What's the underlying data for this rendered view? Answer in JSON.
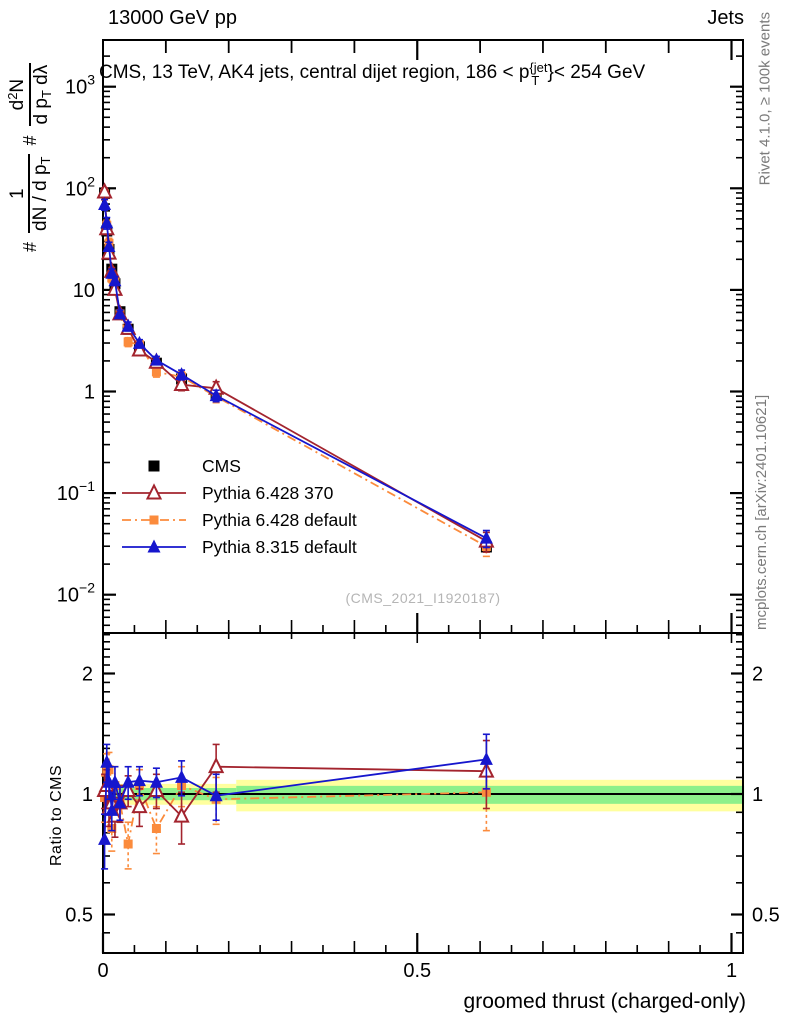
{
  "header": {
    "left": "13000 GeV pp",
    "right": "Jets"
  },
  "plot_title": {
    "pre": "CMS, 13 TeV, AK4 jets, central dijet region, 186 < p",
    "sup": "{jet",
    "sub": "T",
    "post": "}< 254 GeV"
  },
  "ylabel_parts": {
    "hash1": "#",
    "frac1_num": "1",
    "frac1_den_pre": "dN / d p",
    "frac1_den_sub": "T",
    "hash2": "#",
    "frac2_num_pre": "d",
    "frac2_num_sup": "2",
    "frac2_num_post": "N",
    "frac2_den_pre": "d p",
    "frac2_den_sub": "T",
    "frac2_den_post": " dλ"
  },
  "side_notes": {
    "rivet": "Rivet 4.1.0, ≥ 100k events",
    "mcplots": "mcplots.cern.ch [arXiv:2401.10621]"
  },
  "watermark": "(CMS_2021_I1920187)",
  "ratio_ylabel": "Ratio to CMS",
  "chart_data": {
    "type": "line",
    "title": "CMS, 13 TeV, AK4 jets, central dijet region, 186 < p^{jet}_T < 254 GeV",
    "xlabel": "groomed thrust (charged-only)",
    "ylabel": "# 1/(dN/dp_T) d^2N/(dp_T dλ)",
    "ratio_ylabel": "Ratio to CMS",
    "legend_position": "middle-left",
    "grid": false,
    "x_axis": {
      "range": [
        0,
        1.02
      ],
      "major_ticks": [
        0,
        0.5,
        1
      ],
      "tick_labels": [
        "0",
        "0.5",
        "1"
      ],
      "medium_step": 0.1,
      "minor_step": 0.05
    },
    "y_main_axis": {
      "log": true,
      "range": [
        0.0042,
        2900
      ],
      "decade_exponents": [
        3,
        2,
        1,
        0,
        -1,
        -2
      ]
    },
    "y_ratio_axis": {
      "log": true,
      "range": [
        0.4,
        2.53
      ],
      "ticks": [
        2,
        1,
        0.5
      ],
      "tick_labels": [
        "2",
        "1",
        "0.5"
      ],
      "minor_ticks": [
        0.45,
        0.6,
        0.7,
        0.8,
        0.9,
        1.1,
        1.2,
        1.3,
        1.4,
        1.5,
        1.6,
        1.7,
        1.8,
        1.9,
        2.1,
        2.2,
        2.3,
        2.4,
        2.5
      ]
    },
    "x": [
      0.0025,
      0.006,
      0.0095,
      0.014,
      0.019,
      0.027,
      0.04,
      0.058,
      0.085,
      0.125,
      0.18,
      0.61
    ],
    "series": [
      {
        "label": "CMS",
        "color": "#000000",
        "marker": "square",
        "open": false,
        "line": "none",
        "marker_size": 11,
        "is_reference": true,
        "values": [
          90,
          38,
          25,
          16,
          11.5,
          6.1,
          4.1,
          2.75,
          1.9,
          1.33,
          0.92,
          0.0295
        ],
        "rel_err": [
          0.05,
          0.04,
          0.04,
          0.04,
          0.04,
          0.03,
          0.03,
          0.03,
          0.03,
          0.04,
          0.05,
          0.08
        ]
      },
      {
        "label": "Pythia 6.428 370",
        "color": "#a3242e",
        "marker": "triangle",
        "open": true,
        "line": "solid",
        "marker_size": 13,
        "is_reference": false,
        "ratio_to_cms": [
          1.02,
          1.05,
          0.92,
          0.95,
          0.88,
          0.95,
          1.02,
          0.93,
          1.02,
          0.88,
          1.17,
          1.14
        ],
        "ratio_err": [
          0.1,
          0.1,
          0.09,
          0.09,
          0.1,
          0.1,
          0.09,
          0.1,
          0.1,
          0.13,
          0.16,
          0.22
        ]
      },
      {
        "label": "Pythia 6.428 default",
        "color": "#fb8b3c",
        "marker": "square",
        "open": false,
        "line": "dashdot",
        "marker_size": 9,
        "is_reference": false,
        "ratio_to_cms": [
          0.98,
          1.14,
          1.15,
          0.82,
          1.05,
          0.95,
          0.75,
          1.05,
          0.82,
          1.05,
          0.97,
          1.01
        ],
        "ratio_err": [
          0.13,
          0.12,
          0.12,
          0.1,
          0.12,
          0.1,
          0.1,
          0.1,
          0.11,
          0.12,
          0.13,
          0.2
        ]
      },
      {
        "label": "Pythia 8.315 default",
        "color": "#1616cd",
        "marker": "triangle",
        "open": false,
        "line": "solid",
        "marker_size": 13,
        "is_reference": false,
        "ratio_to_cms": [
          0.77,
          1.2,
          1.07,
          0.91,
          1.07,
          0.95,
          1.07,
          1.08,
          1.07,
          1.1,
          0.99,
          1.22
        ],
        "ratio_err": [
          0.12,
          0.13,
          0.1,
          0.1,
          0.1,
          0.09,
          0.1,
          0.09,
          0.09,
          0.11,
          0.13,
          0.19
        ]
      }
    ],
    "ratio_bands": [
      {
        "x_range": [
          0.001,
          0.212
        ],
        "yellow": [
          0.94,
          1.06
        ],
        "green": [
          0.965,
          1.035
        ]
      },
      {
        "x_range": [
          0.212,
          1.02
        ],
        "yellow": [
          0.905,
          1.085
        ],
        "green": [
          0.945,
          1.048
        ]
      }
    ],
    "band_colors": {
      "yellow": "#ffff9e",
      "green": "#8df08a"
    },
    "reference_line": 1.0
  }
}
